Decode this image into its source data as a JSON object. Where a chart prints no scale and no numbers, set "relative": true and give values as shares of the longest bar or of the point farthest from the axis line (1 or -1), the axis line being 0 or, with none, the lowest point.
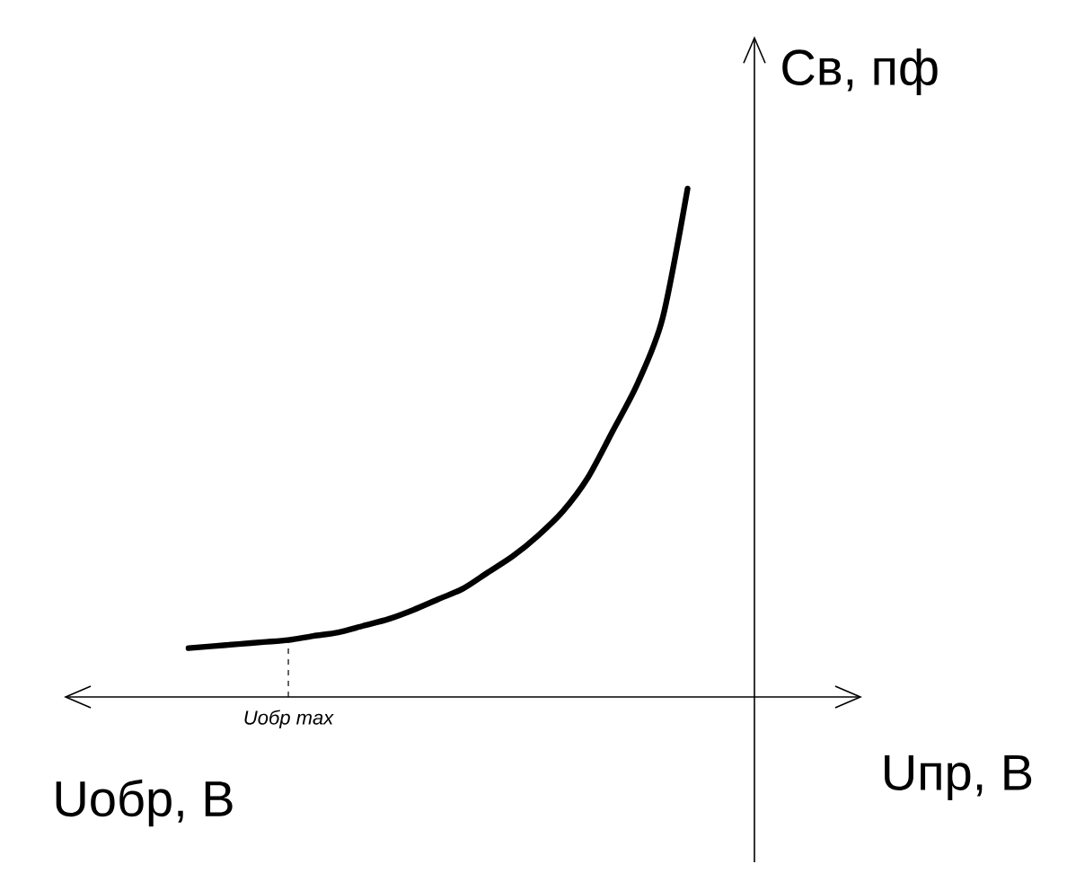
{
  "chart_data": {
    "type": "line",
    "relative": true,
    "color": "#000000",
    "marker": "none",
    "line_style": "solid",
    "ylabel": "Св, пф",
    "xlabel": "Uпр, В",
    "annotations": [
      {
        "text": "Uобр max",
        "y": 0.112
      },
      "Uобр, В"
    ],
    "categories": [
      null,
      null,
      null,
      null,
      null,
      null,
      null,
      null,
      null,
      null,
      null,
      null,
      null,
      null,
      null,
      null,
      null,
      null,
      null,
      null,
      null,
      null,
      null,
      null,
      null,
      null,
      null,
      null,
      null,
      null,
      null,
      null,
      null
    ],
    "values": [
      null,
      null,
      null,
      null,
      null,
      0.096,
      0.1,
      0.104,
      0.108,
      0.112,
      0.12,
      0.127,
      0.14,
      0.153,
      0.171,
      0.192,
      0.213,
      0.245,
      0.277,
      0.317,
      0.365,
      0.431,
      0.523,
      0.617,
      0.745,
      1.0,
      null,
      null,
      null,
      null,
      null,
      null,
      null
    ]
  }
}
